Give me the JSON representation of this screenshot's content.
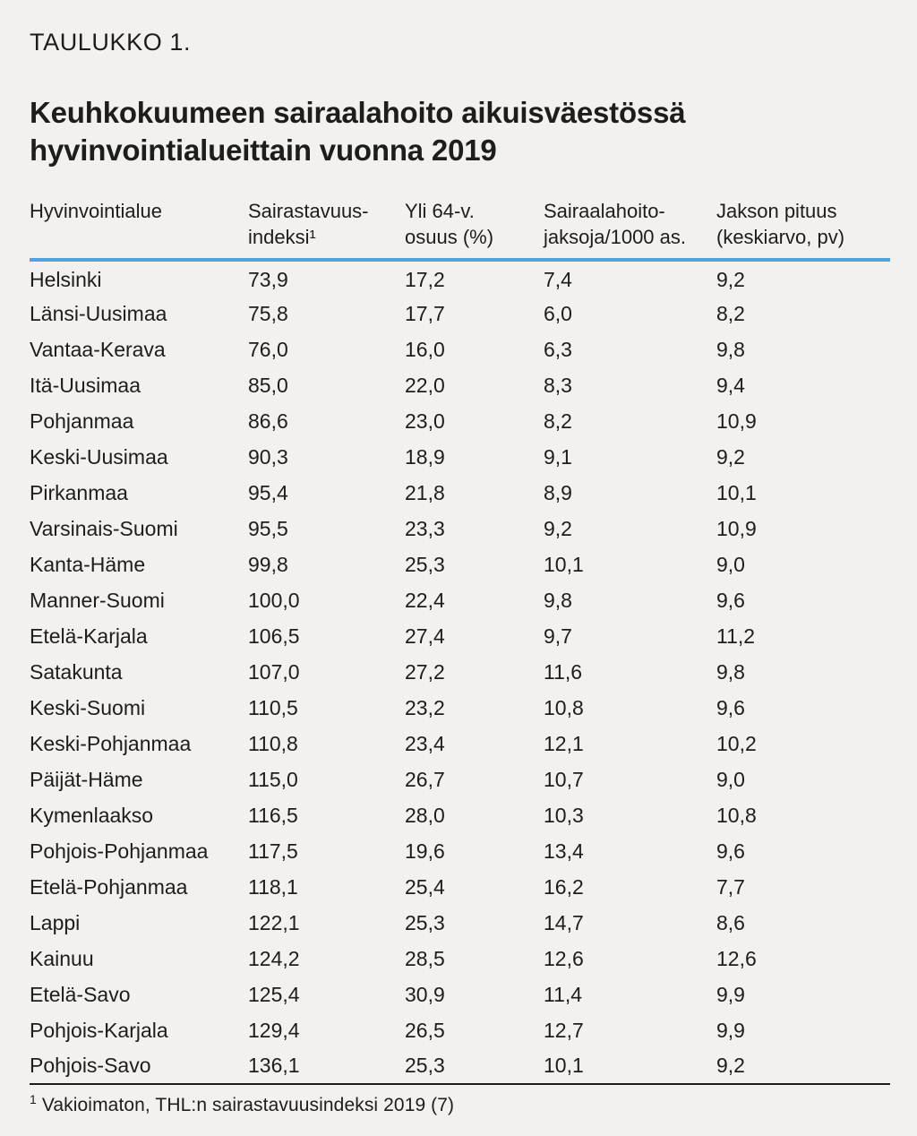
{
  "colors": {
    "background": "#f2f1ee",
    "text": "#1d1d1b",
    "header_rule_blue": "#4ba4dc",
    "bottom_rule_dark": "#1d1d1b"
  },
  "kicker": "TAULUKKO 1.",
  "title": "Keuhkokuumeen sairaalahoito aikuisväestössä hyvinvointialueittain vuonna 2019",
  "table": {
    "columns": [
      {
        "lines": [
          "Hyvinvointialue"
        ]
      },
      {
        "lines": [
          "Sairastavuus-",
          "indeksi¹"
        ]
      },
      {
        "lines": [
          "Yli 64-v.",
          "osuus (%)"
        ]
      },
      {
        "lines": [
          "Sairaalahoito-",
          "jaksoja/1000 as."
        ]
      },
      {
        "lines": [
          "Jakson pituus",
          "(keskiarvo, pv)"
        ]
      }
    ],
    "rows": [
      [
        "Helsinki",
        "73,9",
        "17,2",
        "7,4",
        "9,2"
      ],
      [
        "Länsi-Uusimaa",
        "75,8",
        "17,7",
        "6,0",
        "8,2"
      ],
      [
        "Vantaa-Kerava",
        "76,0",
        "16,0",
        "6,3",
        "9,8"
      ],
      [
        "Itä-Uusimaa",
        "85,0",
        "22,0",
        "8,3",
        "9,4"
      ],
      [
        "Pohjanmaa",
        "86,6",
        "23,0",
        "8,2",
        "10,9"
      ],
      [
        "Keski-Uusimaa",
        "90,3",
        "18,9",
        "9,1",
        "9,2"
      ],
      [
        "Pirkanmaa",
        "95,4",
        "21,8",
        "8,9",
        "10,1"
      ],
      [
        "Varsinais-Suomi",
        "95,5",
        "23,3",
        "9,2",
        "10,9"
      ],
      [
        "Kanta-Häme",
        "99,8",
        "25,3",
        "10,1",
        "9,0"
      ],
      [
        "Manner-Suomi",
        "100,0",
        "22,4",
        "9,8",
        "9,6"
      ],
      [
        "Etelä-Karjala",
        "106,5",
        "27,4",
        "9,7",
        "11,2"
      ],
      [
        "Satakunta",
        "107,0",
        "27,2",
        "11,6",
        "9,8"
      ],
      [
        "Keski-Suomi",
        "110,5",
        "23,2",
        "10,8",
        "9,6"
      ],
      [
        "Keski-Pohjanmaa",
        "110,8",
        "23,4",
        "12,1",
        "10,2"
      ],
      [
        "Päijät-Häme",
        "115,0",
        "26,7",
        "10,7",
        "9,0"
      ],
      [
        "Kymenlaakso",
        "116,5",
        "28,0",
        "10,3",
        "10,8"
      ],
      [
        "Pohjois-Pohjanmaa",
        "117,5",
        "19,6",
        "13,4",
        "9,6"
      ],
      [
        "Etelä-Pohjanmaa",
        "118,1",
        "25,4",
        "16,2",
        "7,7"
      ],
      [
        "Lappi",
        "122,1",
        "25,3",
        "14,7",
        "8,6"
      ],
      [
        "Kainuu",
        "124,2",
        "28,5",
        "12,6",
        "12,6"
      ],
      [
        "Etelä-Savo",
        "125,4",
        "30,9",
        "11,4",
        "9,9"
      ],
      [
        "Pohjois-Karjala",
        "129,4",
        "26,5",
        "12,7",
        "9,9"
      ],
      [
        "Pohjois-Savo",
        "136,1",
        "25,3",
        "10,1",
        "9,2"
      ]
    ]
  },
  "footnote": {
    "marker": "1",
    "text": "Vakioimaton, THL:n sairastavuusindeksi 2019 (7)"
  }
}
